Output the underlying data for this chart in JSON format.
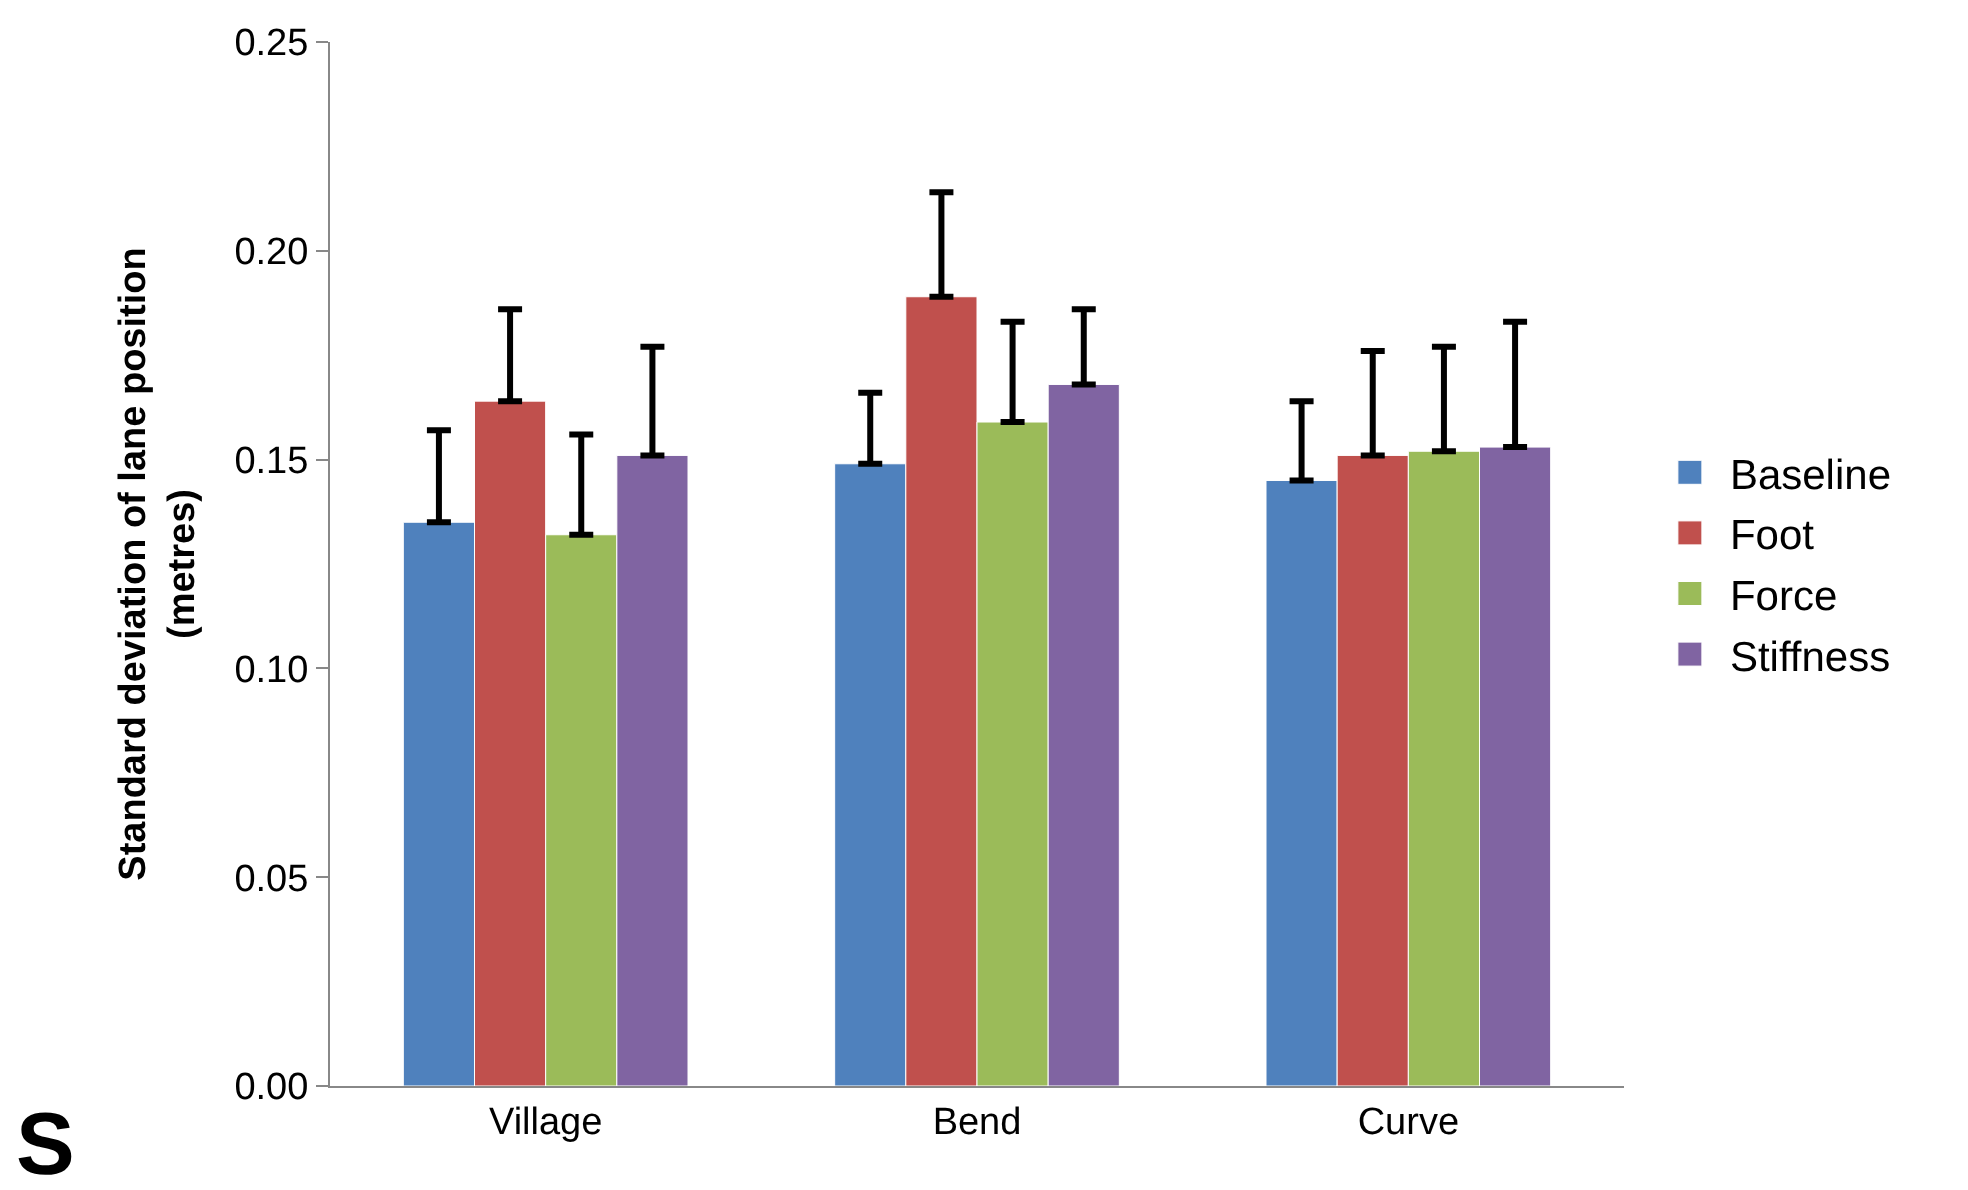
{
  "chart_data": {
    "type": "bar",
    "ylabel": "Standard deviation of lane position\n(metres)",
    "categories": [
      "Village",
      "Bend",
      "Curve"
    ],
    "series": [
      {
        "name": "Baseline",
        "color": "#4f81bd",
        "values": [
          0.135,
          0.149,
          0.145
        ],
        "errors": [
          [
            0.135,
            0.157
          ],
          [
            0.149,
            0.166
          ],
          [
            0.145,
            0.164
          ]
        ]
      },
      {
        "name": "Foot",
        "color": "#c0504d",
        "values": [
          0.164,
          0.189,
          0.151
        ],
        "errors": [
          [
            0.164,
            0.186
          ],
          [
            0.189,
            0.214
          ],
          [
            0.151,
            0.176
          ]
        ]
      },
      {
        "name": "Force",
        "color": "#9bbb59",
        "values": [
          0.132,
          0.159,
          0.152
        ],
        "errors": [
          [
            0.132,
            0.156
          ],
          [
            0.159,
            0.183
          ],
          [
            0.152,
            0.177
          ]
        ]
      },
      {
        "name": "Stiffness",
        "color": "#8064a2",
        "values": [
          0.151,
          0.168,
          0.153
        ],
        "errors": [
          [
            0.151,
            0.177
          ],
          [
            0.168,
            0.186
          ],
          [
            0.153,
            0.183
          ]
        ]
      }
    ],
    "ylim": [
      0,
      0.25
    ],
    "yticks": [
      {
        "value": 0,
        "label": "0.00"
      },
      {
        "value": 0.05,
        "label": "0.05"
      },
      {
        "value": 0.1,
        "label": "0.10"
      },
      {
        "value": 0.15,
        "label": "0.15"
      },
      {
        "value": 0.2,
        "label": "0.20"
      },
      {
        "value": 0.25,
        "label": "0.25"
      }
    ],
    "legend": "right",
    "annotations": [
      "S"
    ]
  }
}
